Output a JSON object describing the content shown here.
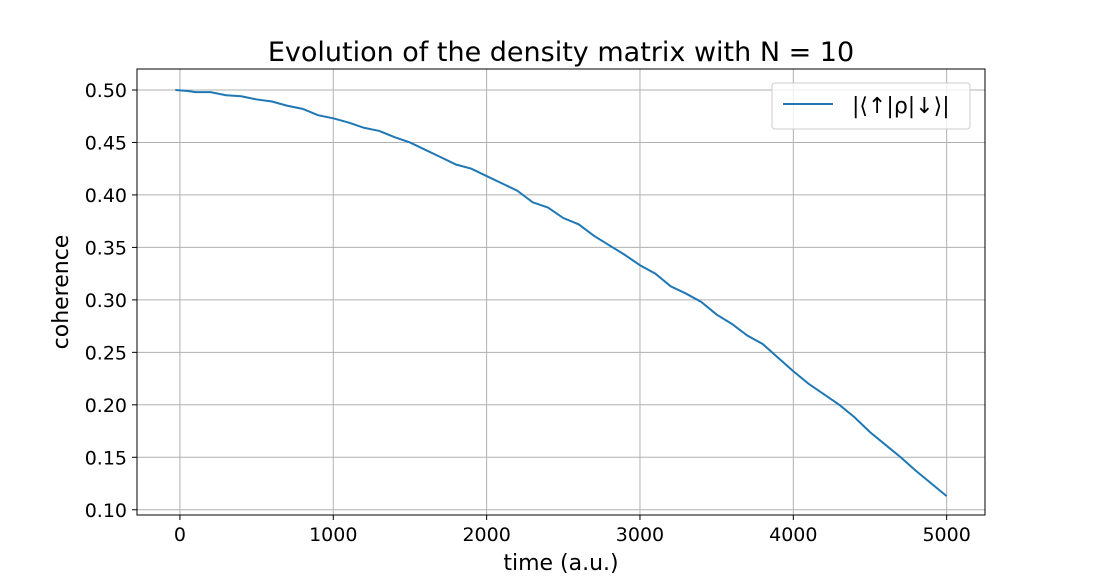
{
  "chart_data": {
    "type": "line",
    "title": "Evolution of the density matrix with N = 10",
    "xlabel": "time (a.u.)",
    "ylabel": "coherence",
    "xlim": [
      -280,
      5250
    ],
    "ylim": [
      0.095,
      0.52
    ],
    "xticks": [
      0,
      1000,
      2000,
      3000,
      4000,
      5000
    ],
    "xtick_labels": [
      "0",
      "1000",
      "2000",
      "3000",
      "4000",
      "5000"
    ],
    "yticks": [
      0.1,
      0.15,
      0.2,
      0.25,
      0.3,
      0.35,
      0.4,
      0.45,
      0.5
    ],
    "ytick_labels": [
      "0.10",
      "0.15",
      "0.20",
      "0.25",
      "0.30",
      "0.35",
      "0.40",
      "0.45",
      "0.50"
    ],
    "grid": true,
    "legend_position": "top-right",
    "series": [
      {
        "name": "|⟨↑|ρ|↓⟩|",
        "color": "#1f77b4",
        "x": [
          -30,
          50,
          100,
          200,
          300,
          400,
          500,
          600,
          700,
          800,
          900,
          1000,
          1100,
          1200,
          1300,
          1400,
          1500,
          1600,
          1700,
          1800,
          1900,
          2000,
          2100,
          2200,
          2300,
          2400,
          2500,
          2600,
          2700,
          2800,
          2900,
          3000,
          3100,
          3200,
          3300,
          3400,
          3500,
          3600,
          3700,
          3800,
          3900,
          4000,
          4100,
          4200,
          4300,
          4400,
          4500,
          4600,
          4700,
          4800,
          4900,
          5000
        ],
        "y": [
          0.5,
          0.499,
          0.498,
          0.498,
          0.495,
          0.494,
          0.491,
          0.489,
          0.485,
          0.482,
          0.476,
          0.473,
          0.469,
          0.464,
          0.461,
          0.455,
          0.45,
          0.443,
          0.436,
          0.429,
          0.425,
          0.418,
          0.411,
          0.404,
          0.393,
          0.388,
          0.378,
          0.372,
          0.361,
          0.352,
          0.343,
          0.333,
          0.325,
          0.313,
          0.306,
          0.298,
          0.286,
          0.277,
          0.266,
          0.258,
          0.245,
          0.232,
          0.22,
          0.21,
          0.2,
          0.188,
          0.174,
          0.162,
          0.15,
          0.137,
          0.125,
          0.113
        ]
      }
    ]
  }
}
